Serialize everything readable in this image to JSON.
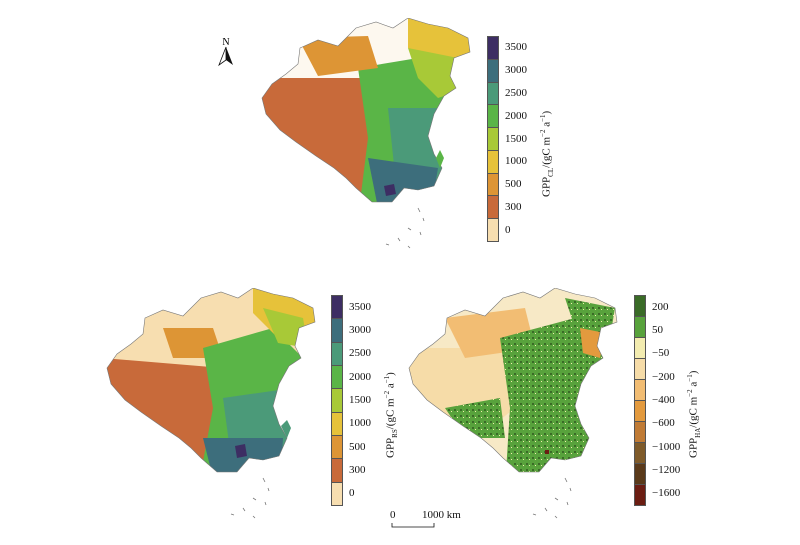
{
  "north_label": "N",
  "scale": {
    "start": "0",
    "end": "1000 km"
  },
  "panels": [
    {
      "id": "cl",
      "title_main": "GPP",
      "title_sub": "CL",
      "title_unit": "/(gC m",
      "title_exp1": "−2",
      "title_mid": " a",
      "title_exp2": "−1",
      "title_close": ")",
      "labels": [
        "3500",
        "3000",
        "2500",
        "2000",
        "1500",
        "1000",
        "500",
        "300",
        "0"
      ],
      "colors": [
        "#3d2e63",
        "#3d6e7c",
        "#4b9a79",
        "#5ab547",
        "#a8c937",
        "#e6c23a",
        "#dd9535",
        "#c86a3a",
        "#f7deb0"
      ]
    },
    {
      "id": "rs",
      "title_main": "GPP",
      "title_sub": "RS",
      "title_unit": "/(gC m",
      "title_exp1": "−2",
      "title_mid": " a",
      "title_exp2": "−1",
      "title_close": ")",
      "labels": [
        "3500",
        "3000",
        "2500",
        "2000",
        "1500",
        "1000",
        "500",
        "300",
        "0"
      ],
      "colors": [
        "#3d2e63",
        "#3d6e7c",
        "#4b9a79",
        "#5ab547",
        "#a8c937",
        "#e6c23a",
        "#dd9535",
        "#c86a3a",
        "#f7deb0"
      ]
    },
    {
      "id": "ha",
      "title_main": "GPP",
      "title_sub": "HA",
      "title_unit": "/(gC m",
      "title_exp1": "−2",
      "title_mid": " a",
      "title_exp2": "−1",
      "title_close": ")",
      "labels": [
        "200",
        "50",
        "−50",
        "−200",
        "−400",
        "−600",
        "−1000",
        "−1200",
        "−1600"
      ],
      "colors": [
        "#3a6b27",
        "#58a23c",
        "#f3ecb0",
        "#f6dca8",
        "#f2bd73",
        "#e39a3e",
        "#c07b35",
        "#7f5b2a",
        "#5a3a1a",
        "#6b1d12"
      ]
    }
  ]
}
